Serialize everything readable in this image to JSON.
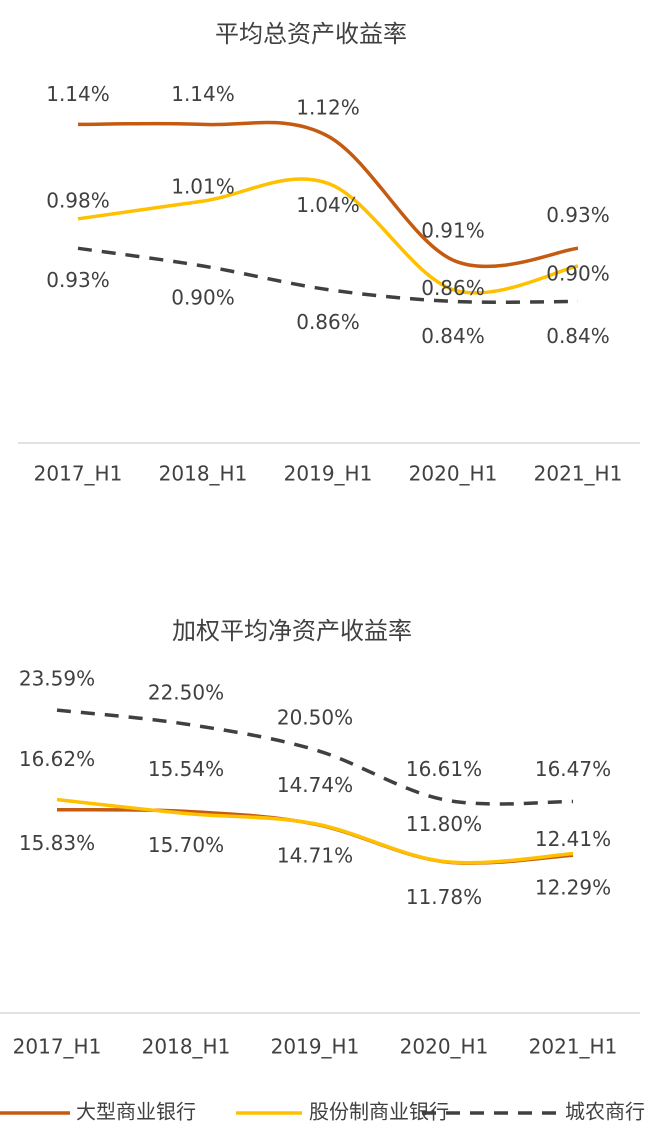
{
  "chart_data": [
    {
      "type": "line",
      "title": "平均总资产收益率",
      "categories": [
        "2017_H1",
        "2018_H1",
        "2019_H1",
        "2020_H1",
        "2021_H1"
      ],
      "ylim": [
        0.6,
        1.2
      ],
      "series": [
        {
          "name": "大型商业银行",
          "color": "#c55a11",
          "values": [
            1.14,
            1.14,
            1.12,
            0.91,
            0.93
          ],
          "value_labels": [
            "1.14%",
            "1.14%",
            "1.12%",
            "0.91%",
            "0.93%"
          ]
        },
        {
          "name": "股份制商业银行",
          "color": "#ffc000",
          "values": [
            0.98,
            1.01,
            1.04,
            0.86,
            0.9
          ],
          "value_labels": [
            "0.98%",
            "1.01%",
            "1.04%",
            "0.86%",
            "0.90%"
          ]
        },
        {
          "name": "城农商行",
          "color": "#404040",
          "dash": true,
          "values": [
            0.93,
            0.9,
            0.86,
            0.84,
            0.84
          ],
          "value_labels": [
            "0.93%",
            "0.90%",
            "0.86%",
            "0.84%",
            "0.84%"
          ]
        }
      ]
    },
    {
      "type": "line",
      "title": "加权平均净资产收益率",
      "categories": [
        "2017_H1",
        "2018_H1",
        "2019_H1",
        "2020_H1",
        "2021_H1"
      ],
      "ylim": [
        0,
        25
      ],
      "series": [
        {
          "name": "大型商业银行",
          "color": "#c55a11",
          "values": [
            15.83,
            15.7,
            14.71,
            11.78,
            12.29
          ],
          "value_labels": [
            "15.83%",
            "15.70%",
            "14.71%",
            "11.78%",
            "12.29%"
          ]
        },
        {
          "name": "股份制商业银行",
          "color": "#ffc000",
          "values": [
            16.62,
            15.54,
            14.74,
            11.8,
            12.41
          ],
          "value_labels": [
            "16.62%",
            "15.54%",
            "14.74%",
            "11.80%",
            "12.41%"
          ]
        },
        {
          "name": "城农商行",
          "color": "#404040",
          "dash": true,
          "values": [
            23.59,
            22.5,
            20.5,
            16.61,
            16.47
          ],
          "value_labels": [
            "23.59%",
            "22.50%",
            "20.50%",
            "16.61%",
            "16.47%"
          ]
        }
      ]
    }
  ]
}
